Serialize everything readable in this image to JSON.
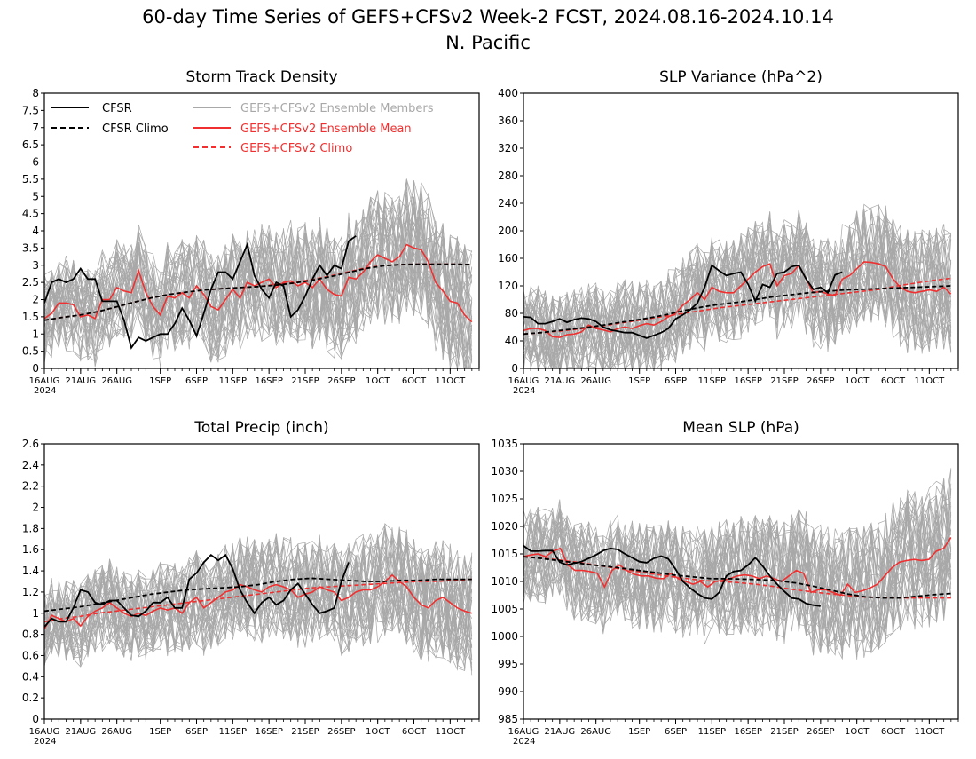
{
  "figure": {
    "title": "60-day Time Series of GEFS+CFSv2 Week-2 FCST, 2024.08.16-2024.10.14",
    "region": "N. Pacific",
    "year_label": "2024"
  },
  "legend": {
    "cfsr": "CFSR",
    "cfsr_climo": "CFSR Climo",
    "members": "GEFS+CFSv2 Ensemble Members",
    "mean": "GEFS+CFSv2 Ensemble Mean",
    "climo": "GEFS+CFSv2 Climo"
  },
  "colors": {
    "cfsr": "#000000",
    "members": "#a8a8a8",
    "mean": "#f03030",
    "climo": "#f03030"
  },
  "x_axis": {
    "days": 60,
    "tick_labels": [
      "16AUG",
      "21AUG",
      "26AUG",
      "1SEP",
      "6SEP",
      "11SEP",
      "16SEP",
      "21SEP",
      "26SEP",
      "1OCT",
      "6OCT",
      "11OCT"
    ],
    "tick_days": [
      0,
      5,
      10,
      16,
      21,
      26,
      31,
      36,
      41,
      46,
      51,
      56
    ]
  },
  "chart_data": [
    {
      "type": "line",
      "title": "Storm Track Density",
      "ylim": [
        0,
        8
      ],
      "yticks": [
        "0",
        "0.5",
        "1",
        "1.5",
        "2",
        "2.5",
        "3",
        "3.5",
        "4",
        "4.5",
        "5",
        "5.5",
        "6",
        "6.5",
        "7",
        "7.5",
        "8"
      ],
      "spread": [
        1.5,
        4.5
      ],
      "series": [
        {
          "name": "CFSR",
          "values": [
            1.9,
            2.5,
            2.6,
            2.5,
            2.6,
            2.9,
            2.6,
            2.6,
            1.95,
            1.95,
            1.95,
            1.4,
            0.6,
            0.9,
            0.8,
            0.9,
            1.0,
            1.0,
            1.3,
            1.75,
            1.4,
            0.95,
            1.6,
            2.3,
            2.8,
            2.8,
            2.6,
            3.1,
            3.6,
            2.7,
            2.3,
            2.05,
            2.5,
            2.4,
            1.5,
            1.7,
            2.1,
            2.6,
            3.0,
            2.7,
            3.0,
            2.9,
            3.7,
            3.85
          ]
        },
        {
          "name": "CFSR Climo",
          "values": [
            1.4,
            1.48,
            1.55,
            1.65,
            1.78,
            1.92,
            2.05,
            2.15,
            2.22,
            2.28,
            2.32,
            2.35,
            2.38,
            2.42,
            2.48,
            2.56,
            2.66,
            2.78,
            2.9,
            2.98,
            3.02,
            3.03,
            3.03,
            3.03,
            3.02
          ]
        },
        {
          "name": "GEFS+CFSv2 Ensemble Mean",
          "values": [
            1.45,
            1.6,
            1.9,
            1.9,
            1.85,
            1.5,
            1.55,
            1.45,
            2.0,
            2.0,
            2.35,
            2.25,
            2.2,
            2.85,
            2.2,
            1.8,
            1.55,
            2.1,
            2.05,
            2.2,
            2.05,
            2.4,
            2.15,
            1.8,
            1.7,
            2.0,
            2.3,
            2.05,
            2.5,
            2.4,
            2.5,
            2.6,
            2.35,
            2.5,
            2.55,
            2.4,
            2.5,
            2.35,
            2.6,
            2.3,
            2.15,
            2.1,
            2.65,
            2.6,
            2.8,
            3.1,
            3.3,
            3.2,
            3.1,
            3.25,
            3.6,
            3.5,
            3.45,
            3.1,
            2.5,
            2.25,
            1.95,
            1.9,
            1.55,
            1.35
          ]
        },
        {
          "name": "GEFS+CFSv2 Climo",
          "values": [
            1.4,
            1.48,
            1.55,
            1.65,
            1.78,
            1.92,
            2.05,
            2.15,
            2.22,
            2.28,
            2.32,
            2.35,
            2.38,
            2.44,
            2.5,
            2.58,
            2.68,
            2.8,
            2.92,
            2.99,
            3.02,
            3.03,
            3.03,
            3.03,
            3.02
          ]
        }
      ]
    },
    {
      "type": "line",
      "title": "SLP Variance (hPa^2)",
      "ylim": [
        0,
        400
      ],
      "yticks": [
        "0",
        "40",
        "80",
        "120",
        "160",
        "200",
        "240",
        "280",
        "320",
        "360",
        "400"
      ],
      "spread": [
        45,
        180
      ],
      "series": [
        {
          "name": "CFSR",
          "values": [
            75,
            74,
            65,
            65,
            68,
            72,
            67,
            71,
            73,
            72,
            68,
            60,
            56,
            54,
            52,
            52,
            48,
            44,
            48,
            52,
            58,
            72,
            78,
            85,
            95,
            118,
            150,
            142,
            135,
            138,
            140,
            122,
            98,
            122,
            118,
            138,
            140,
            148,
            150,
            130,
            115,
            118,
            110,
            136,
            140
          ]
        },
        {
          "name": "CFSR Climo",
          "values": [
            50,
            52,
            55,
            58,
            61,
            65,
            69,
            73,
            78,
            84,
            89,
            93,
            96,
            100,
            104,
            107,
            110,
            112,
            114,
            115,
            116,
            117,
            118,
            119,
            120
          ]
        },
        {
          "name": "GEFS+CFSv2 Ensemble Mean",
          "values": [
            55,
            58,
            58,
            55,
            46,
            45,
            49,
            50,
            53,
            63,
            58,
            56,
            53,
            58,
            60,
            58,
            62,
            65,
            63,
            68,
            75,
            80,
            92,
            100,
            110,
            100,
            118,
            112,
            110,
            110,
            120,
            130,
            140,
            148,
            152,
            120,
            135,
            138,
            150,
            130,
            110,
            112,
            108,
            106,
            130,
            135,
            145,
            155,
            154,
            152,
            148,
            130,
            118,
            112,
            110,
            112,
            114,
            112,
            118,
            108
          ]
        },
        {
          "name": "GEFS+CFSv2 Climo",
          "values": [
            50,
            52,
            54,
            57,
            60,
            64,
            68,
            72,
            76,
            80,
            84,
            88,
            91,
            94,
            97,
            100,
            103,
            106,
            109,
            112,
            115,
            120,
            124,
            128,
            131
          ]
        }
      ]
    },
    {
      "type": "line",
      "title": "Total Precip (inch)",
      "ylim": [
        0,
        2.6
      ],
      "yticks": [
        "0",
        "0.2",
        "0.4",
        "0.6",
        "0.8",
        "1",
        "1.2",
        "1.4",
        "1.6",
        "1.8",
        "2",
        "2.2",
        "2.4",
        "2.6"
      ],
      "spread": [
        0.7,
        1.55
      ],
      "series": [
        {
          "name": "CFSR",
          "values": [
            0.87,
            0.95,
            0.92,
            0.92,
            1.05,
            1.22,
            1.2,
            1.1,
            1.08,
            1.12,
            1.12,
            1.05,
            0.98,
            0.97,
            1.02,
            1.1,
            1.1,
            1.15,
            1.05,
            1.05,
            1.32,
            1.38,
            1.48,
            1.55,
            1.5,
            1.55,
            1.42,
            1.22,
            1.1,
            1.0,
            1.1,
            1.15,
            1.08,
            1.12,
            1.22,
            1.28,
            1.18,
            1.08,
            1.0,
            1.02,
            1.05,
            1.3,
            1.48
          ]
        },
        {
          "name": "CFSR Climo",
          "values": [
            1.02,
            1.04,
            1.06,
            1.09,
            1.12,
            1.15,
            1.18,
            1.2,
            1.22,
            1.23,
            1.24,
            1.25,
            1.27,
            1.3,
            1.32,
            1.33,
            1.32,
            1.31,
            1.3,
            1.3,
            1.31,
            1.31,
            1.32,
            1.32,
            1.32
          ]
        },
        {
          "name": "GEFS+CFSv2 Ensemble Mean",
          "values": [
            0.85,
            0.98,
            0.95,
            0.92,
            0.95,
            0.88,
            0.97,
            1.02,
            1.05,
            1.1,
            1.05,
            1.0,
            0.97,
            1.0,
            0.98,
            1.02,
            1.05,
            1.03,
            1.05,
            1.0,
            1.1,
            1.15,
            1.05,
            1.1,
            1.15,
            1.2,
            1.22,
            1.27,
            1.25,
            1.22,
            1.2,
            1.25,
            1.27,
            1.25,
            1.22,
            1.15,
            1.18,
            1.2,
            1.25,
            1.22,
            1.2,
            1.12,
            1.15,
            1.2,
            1.22,
            1.22,
            1.25,
            1.3,
            1.36,
            1.3,
            1.25,
            1.15,
            1.08,
            1.05,
            1.12,
            1.15,
            1.1,
            1.05,
            1.02,
            1.0
          ]
        },
        {
          "name": "GEFS+CFSv2 Climo",
          "values": [
            0.92,
            0.95,
            0.97,
            1.0,
            1.02,
            1.04,
            1.06,
            1.08,
            1.1,
            1.12,
            1.14,
            1.16,
            1.18,
            1.2,
            1.22,
            1.24,
            1.25,
            1.26,
            1.27,
            1.28,
            1.29,
            1.3,
            1.3,
            1.31,
            1.32
          ]
        }
      ]
    },
    {
      "type": "line",
      "title": "Mean SLP (hPa)",
      "ylim": [
        985,
        1035
      ],
      "yticks": [
        "985",
        "990",
        "995",
        "1000",
        "1005",
        "1010",
        "1015",
        "1020",
        "1025",
        "1030",
        "1035"
      ],
      "spread": [
        1004,
        1023
      ],
      "series": [
        {
          "name": "CFSR",
          "values": [
            1016.5,
            1015.5,
            1015.5,
            1015.6,
            1015.6,
            1013.5,
            1013.0,
            1013.3,
            1013.6,
            1014.2,
            1014.8,
            1015.6,
            1016.0,
            1015.8,
            1015.0,
            1014.3,
            1013.6,
            1013.4,
            1014.2,
            1014.6,
            1014.1,
            1012.2,
            1010.0,
            1008.8,
            1007.8,
            1007.0,
            1006.8,
            1008.0,
            1011.0,
            1011.8,
            1012.0,
            1013.0,
            1014.3,
            1012.8,
            1011.0,
            1009.5,
            1008.2,
            1007.0,
            1006.8,
            1006.0,
            1005.7,
            1005.5
          ]
        },
        {
          "name": "CFSR Climo",
          "values": [
            1014.5,
            1014.2,
            1013.8,
            1013.4,
            1013.0,
            1012.7,
            1012.3,
            1011.9,
            1011.5,
            1011.1,
            1010.8,
            1010.5,
            1010.5,
            1010.4,
            1010.3,
            1010.1,
            1009.7,
            1009.1,
            1008.4,
            1007.7,
            1007.2,
            1007.0,
            1007.0,
            1007.3,
            1007.6,
            1007.8
          ]
        },
        {
          "name": "GEFS+CFSv2 Ensemble Mean",
          "values": [
            1014.5,
            1014.8,
            1015.0,
            1014.5,
            1015.5,
            1016.0,
            1013.0,
            1012.0,
            1012.0,
            1011.8,
            1011.5,
            1009.0,
            1012.0,
            1013.0,
            1012.0,
            1011.3,
            1011.0,
            1011.0,
            1010.6,
            1010.5,
            1011.5,
            1010.5,
            1010.0,
            1009.5,
            1010.0,
            1009.0,
            1010.0,
            1010.2,
            1010.5,
            1011.0,
            1011.2,
            1011.0,
            1010.5,
            1011.0,
            1010.5,
            1010.0,
            1011.0,
            1012.0,
            1011.5,
            1008.0,
            1008.5,
            1008.5,
            1008.0,
            1007.5,
            1009.5,
            1008.0,
            1008.3,
            1008.8,
            1009.5,
            1011.0,
            1012.5,
            1013.5,
            1013.8,
            1014.0,
            1013.8,
            1014.0,
            1015.5,
            1016.0,
            1018.0
          ]
        },
        {
          "name": "GEFS+CFSv2 Climo",
          "values": [
            1014.5,
            1014.3,
            1013.9,
            1013.5,
            1013.0,
            1012.5,
            1012.0,
            1011.5,
            1011.0,
            1010.6,
            1010.2,
            1010.0,
            1009.8,
            1009.5,
            1009.1,
            1008.6,
            1008.2,
            1007.8,
            1007.5,
            1007.2,
            1007.1,
            1007.0,
            1007.0,
            1007.0,
            1007.0
          ]
        }
      ]
    }
  ]
}
